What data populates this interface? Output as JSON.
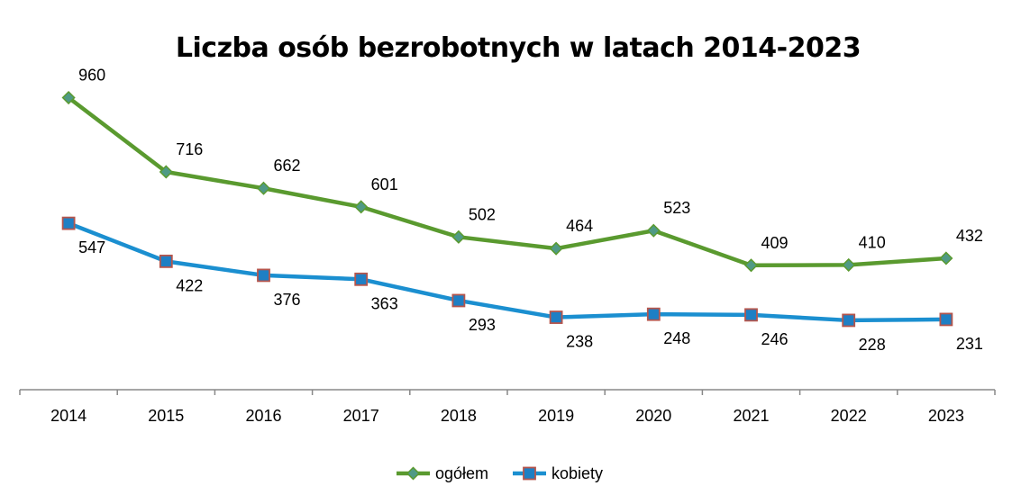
{
  "chart_data": {
    "type": "line",
    "title": "Liczba osób bezrobotnych w latach 2014-2023",
    "xlabel": "",
    "ylabel": "",
    "categories": [
      "2014",
      "2015",
      "2016",
      "2017",
      "2018",
      "2019",
      "2020",
      "2021",
      "2022",
      "2023"
    ],
    "ylim": [
      0,
      1000
    ],
    "grid": false,
    "legend_position": "bottom",
    "series": [
      {
        "name": "ogółem",
        "values": [
          960,
          716,
          662,
          601,
          502,
          464,
          523,
          409,
          410,
          432
        ],
        "color": "#5A9A2F",
        "marker": "diamond",
        "marker_fill": "#4F9A85",
        "label_position": "above"
      },
      {
        "name": "kobiety",
        "values": [
          547,
          422,
          376,
          363,
          293,
          238,
          248,
          246,
          228,
          231
        ],
        "color": "#1B8FD0",
        "marker": "square",
        "marker_fill": "#1E7FC4",
        "marker_stroke": "#B5554C",
        "label_position": "below"
      }
    ]
  }
}
